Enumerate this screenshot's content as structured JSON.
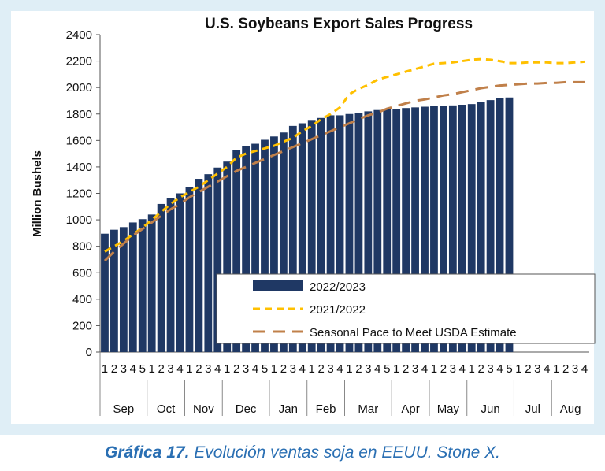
{
  "chart_data": {
    "type": "bar",
    "title": "U.S. Soybeans Export Sales Progress",
    "ylabel": "Million Bushels",
    "ylim": [
      0,
      2400
    ],
    "yticks": [
      0,
      200,
      400,
      600,
      800,
      1000,
      1200,
      1400,
      1600,
      1800,
      2000,
      2200,
      2400
    ],
    "x_week_labels": [
      "1",
      "2",
      "3",
      "4",
      "5",
      "1",
      "2",
      "3",
      "4",
      "1",
      "2",
      "3",
      "4",
      "1",
      "2",
      "3",
      "4",
      "5",
      "1",
      "2",
      "3",
      "4",
      "1",
      "2",
      "3",
      "4",
      "1",
      "2",
      "3",
      "4",
      "5",
      "1",
      "2",
      "3",
      "4",
      "1",
      "2",
      "3",
      "4",
      "1",
      "2",
      "3",
      "4",
      "5",
      "1",
      "2",
      "3",
      "4",
      "1",
      "2",
      "3",
      "4"
    ],
    "months": [
      {
        "label": "Sep",
        "weeks": 5
      },
      {
        "label": "Oct",
        "weeks": 4
      },
      {
        "label": "Nov",
        "weeks": 4
      },
      {
        "label": "Dec",
        "weeks": 5
      },
      {
        "label": "Jan",
        "weeks": 4
      },
      {
        "label": "Feb",
        "weeks": 4
      },
      {
        "label": "Mar",
        "weeks": 5
      },
      {
        "label": "Apr",
        "weeks": 4
      },
      {
        "label": "May",
        "weeks": 4
      },
      {
        "label": "Jun",
        "weeks": 5
      },
      {
        "label": "Jul",
        "weeks": 4
      },
      {
        "label": "Aug",
        "weeks": 4
      }
    ],
    "series": [
      {
        "name": "2022/2023",
        "kind": "bar",
        "color": "#1f3864",
        "values": [
          895,
          925,
          945,
          980,
          1005,
          1040,
          1120,
          1165,
          1200,
          1245,
          1310,
          1345,
          1395,
          1440,
          1530,
          1560,
          1575,
          1605,
          1630,
          1660,
          1710,
          1730,
          1755,
          1770,
          1790,
          1790,
          1800,
          1810,
          1820,
          1830,
          1835,
          1840,
          1845,
          1850,
          1855,
          1860,
          1860,
          1865,
          1870,
          1875,
          1890,
          1905,
          1920,
          1925
        ]
      },
      {
        "name": "2021/2022",
        "kind": "line",
        "style": "short-dash",
        "color": "#ffc000",
        "values": [
          760,
          800,
          840,
          890,
          940,
          1000,
          1060,
          1120,
          1170,
          1210,
          1250,
          1300,
          1350,
          1400,
          1470,
          1500,
          1520,
          1540,
          1560,
          1590,
          1620,
          1670,
          1710,
          1760,
          1800,
          1850,
          1950,
          1990,
          2020,
          2060,
          2080,
          2100,
          2120,
          2140,
          2160,
          2180,
          2185,
          2190,
          2200,
          2210,
          2215,
          2210,
          2200,
          2185,
          2185,
          2190,
          2190,
          2190,
          2185,
          2185,
          2190,
          2195
        ]
      },
      {
        "name": "Seasonal Pace to Meet USDA Estimate",
        "kind": "line",
        "style": "long-dash",
        "color": "#c0804a",
        "values": [
          690,
          760,
          820,
          880,
          930,
          980,
          1030,
          1080,
          1120,
          1170,
          1210,
          1250,
          1290,
          1330,
          1370,
          1400,
          1430,
          1460,
          1490,
          1520,
          1550,
          1580,
          1610,
          1640,
          1670,
          1700,
          1730,
          1760,
          1790,
          1810,
          1840,
          1860,
          1880,
          1900,
          1910,
          1925,
          1940,
          1950,
          1965,
          1980,
          1995,
          2005,
          2015,
          2020,
          2025,
          2030,
          2030,
          2035,
          2035,
          2040,
          2040,
          2040
        ]
      }
    ],
    "legend_position": "bottom-right inside plot"
  },
  "caption": {
    "bold": "Gráfica 17.",
    "text": " Evolución ventas soja en EEUU. Stone X."
  }
}
